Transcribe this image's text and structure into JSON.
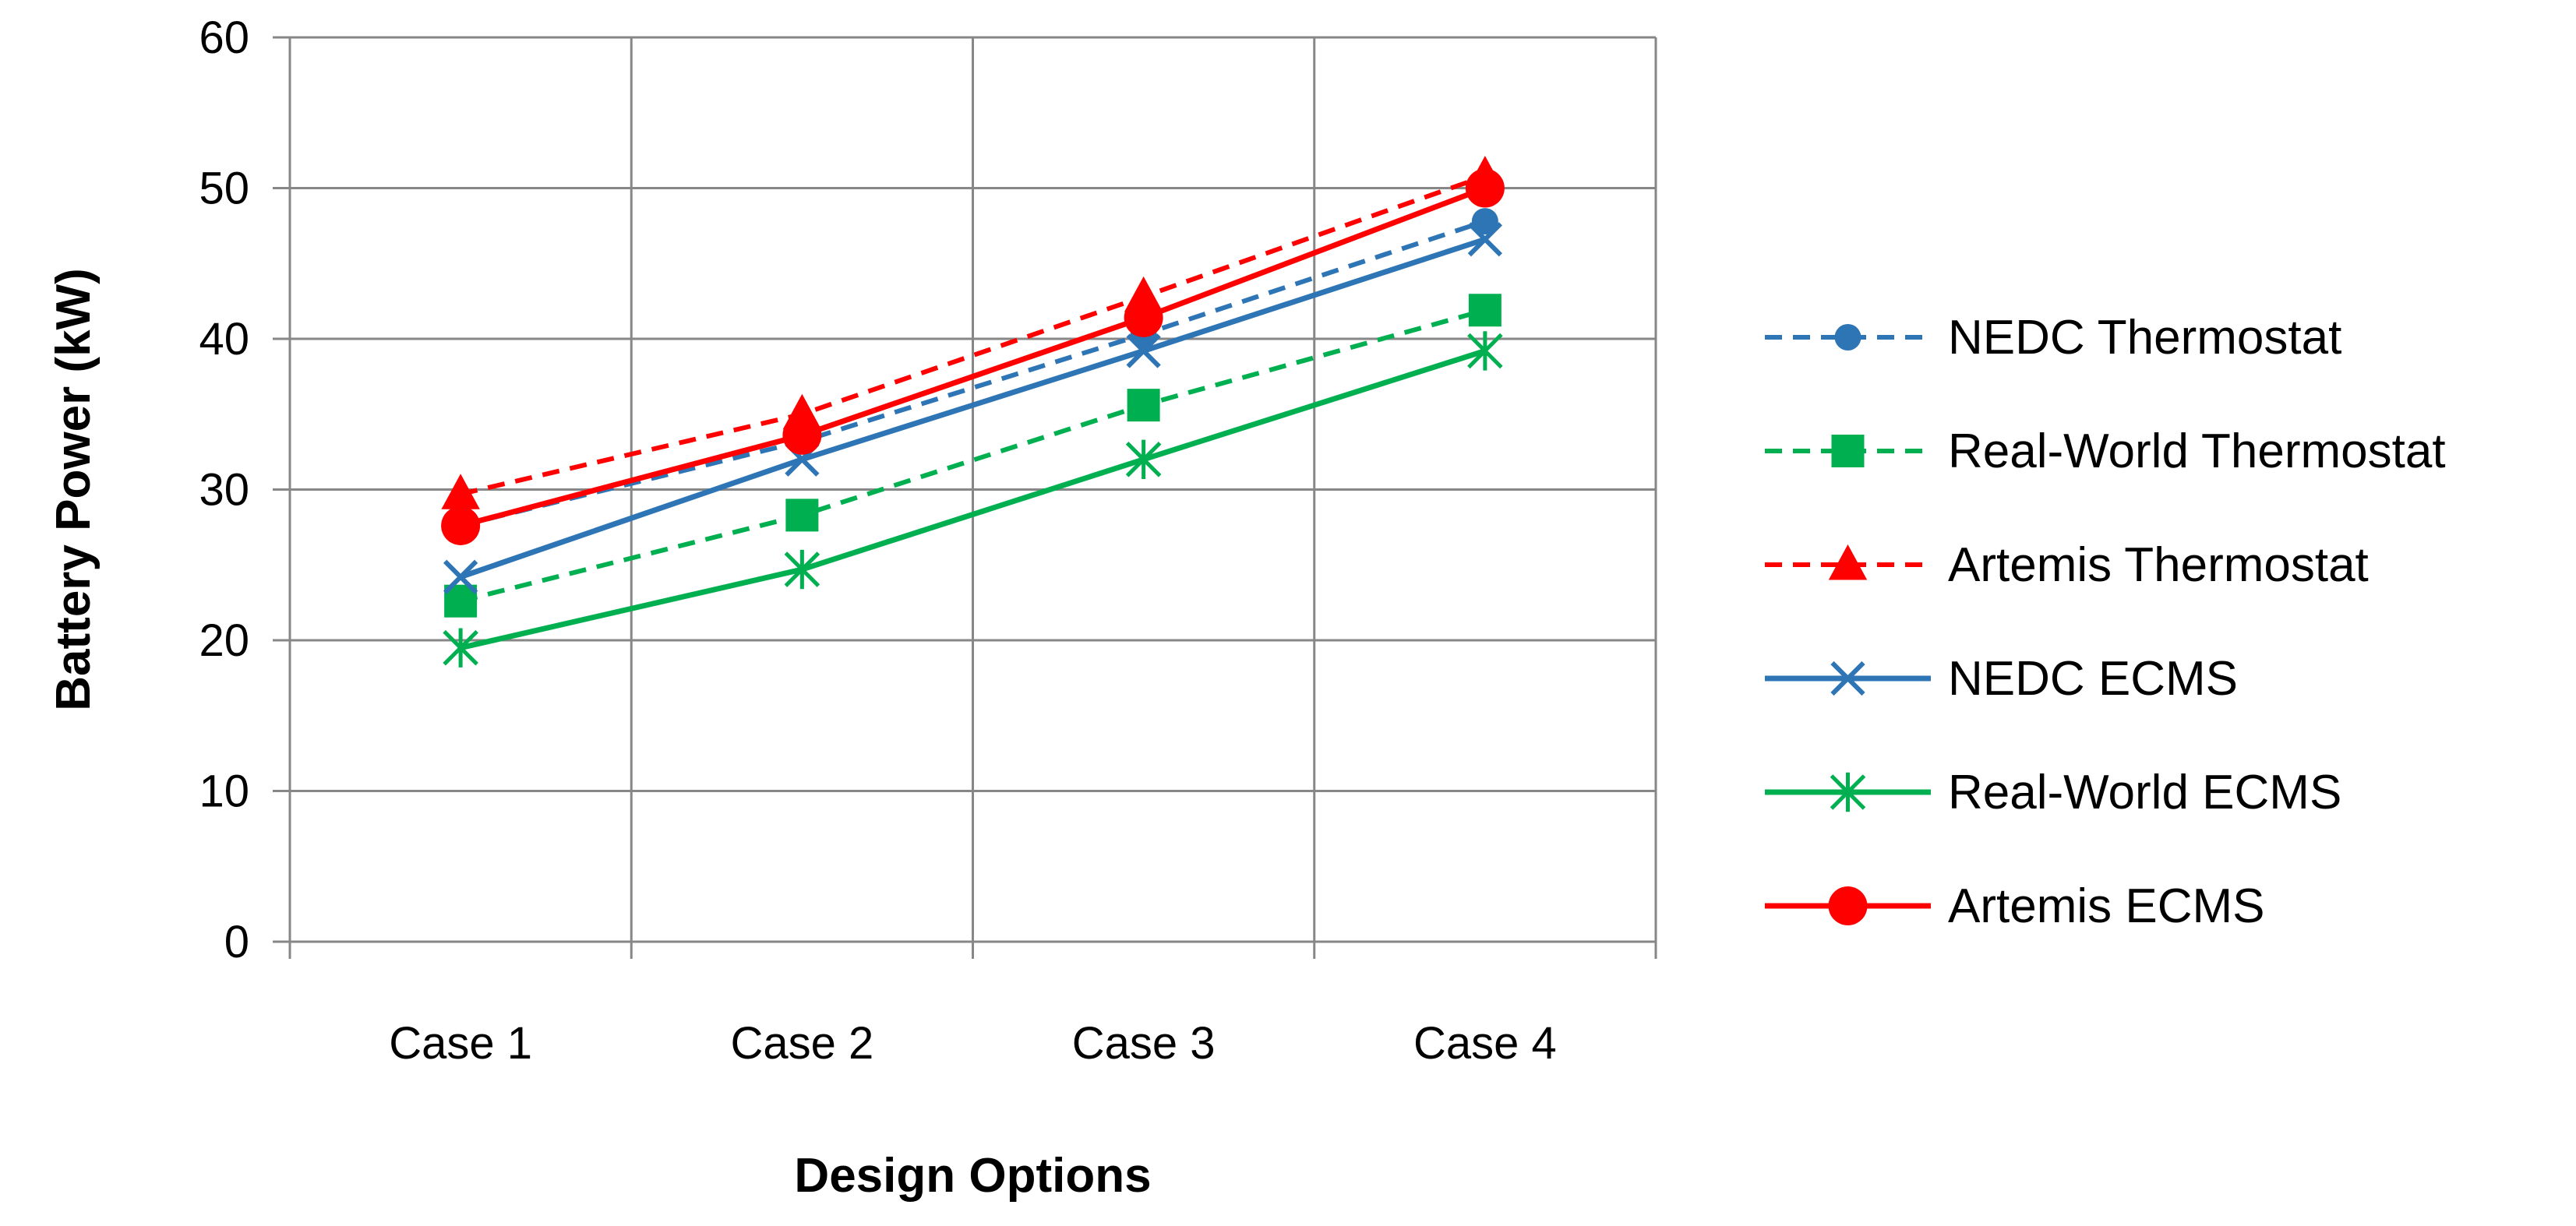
{
  "chart_data": {
    "type": "line",
    "categories": [
      "Case 1",
      "Case 2",
      "Case 3",
      "Case 4"
    ],
    "xlabel": "Design Options",
    "ylabel": "Battery Power (kW)",
    "ylim": [
      0,
      60
    ],
    "yticks": [
      0,
      10,
      20,
      30,
      40,
      50,
      60
    ],
    "grid": true,
    "legend_position": "right",
    "series": [
      {
        "name": "NEDC Thermostat",
        "values": [
          27.6,
          33.2,
          40.3,
          47.8
        ],
        "color": "#2E75B6",
        "line_style": "dashed",
        "marker": "circle-small"
      },
      {
        "name": "Real-World Thermostat",
        "values": [
          22.6,
          28.3,
          35.6,
          41.9
        ],
        "color": "#00B050",
        "line_style": "dashed",
        "marker": "square"
      },
      {
        "name": "Artemis Thermostat",
        "values": [
          29.7,
          35.0,
          42.8,
          50.8
        ],
        "color": "#FF0000",
        "line_style": "dashed",
        "marker": "triangle"
      },
      {
        "name": "NEDC ECMS",
        "values": [
          24.2,
          32.0,
          39.2,
          46.6
        ],
        "color": "#2E75B6",
        "line_style": "solid",
        "marker": "x"
      },
      {
        "name": "Real-World ECMS",
        "values": [
          19.5,
          24.7,
          32.0,
          39.2
        ],
        "color": "#00B050",
        "line_style": "solid",
        "marker": "star"
      },
      {
        "name": "Artemis ECMS",
        "values": [
          27.6,
          33.6,
          41.4,
          50.0
        ],
        "color": "#FF0000",
        "line_style": "solid",
        "marker": "circle"
      }
    ]
  }
}
